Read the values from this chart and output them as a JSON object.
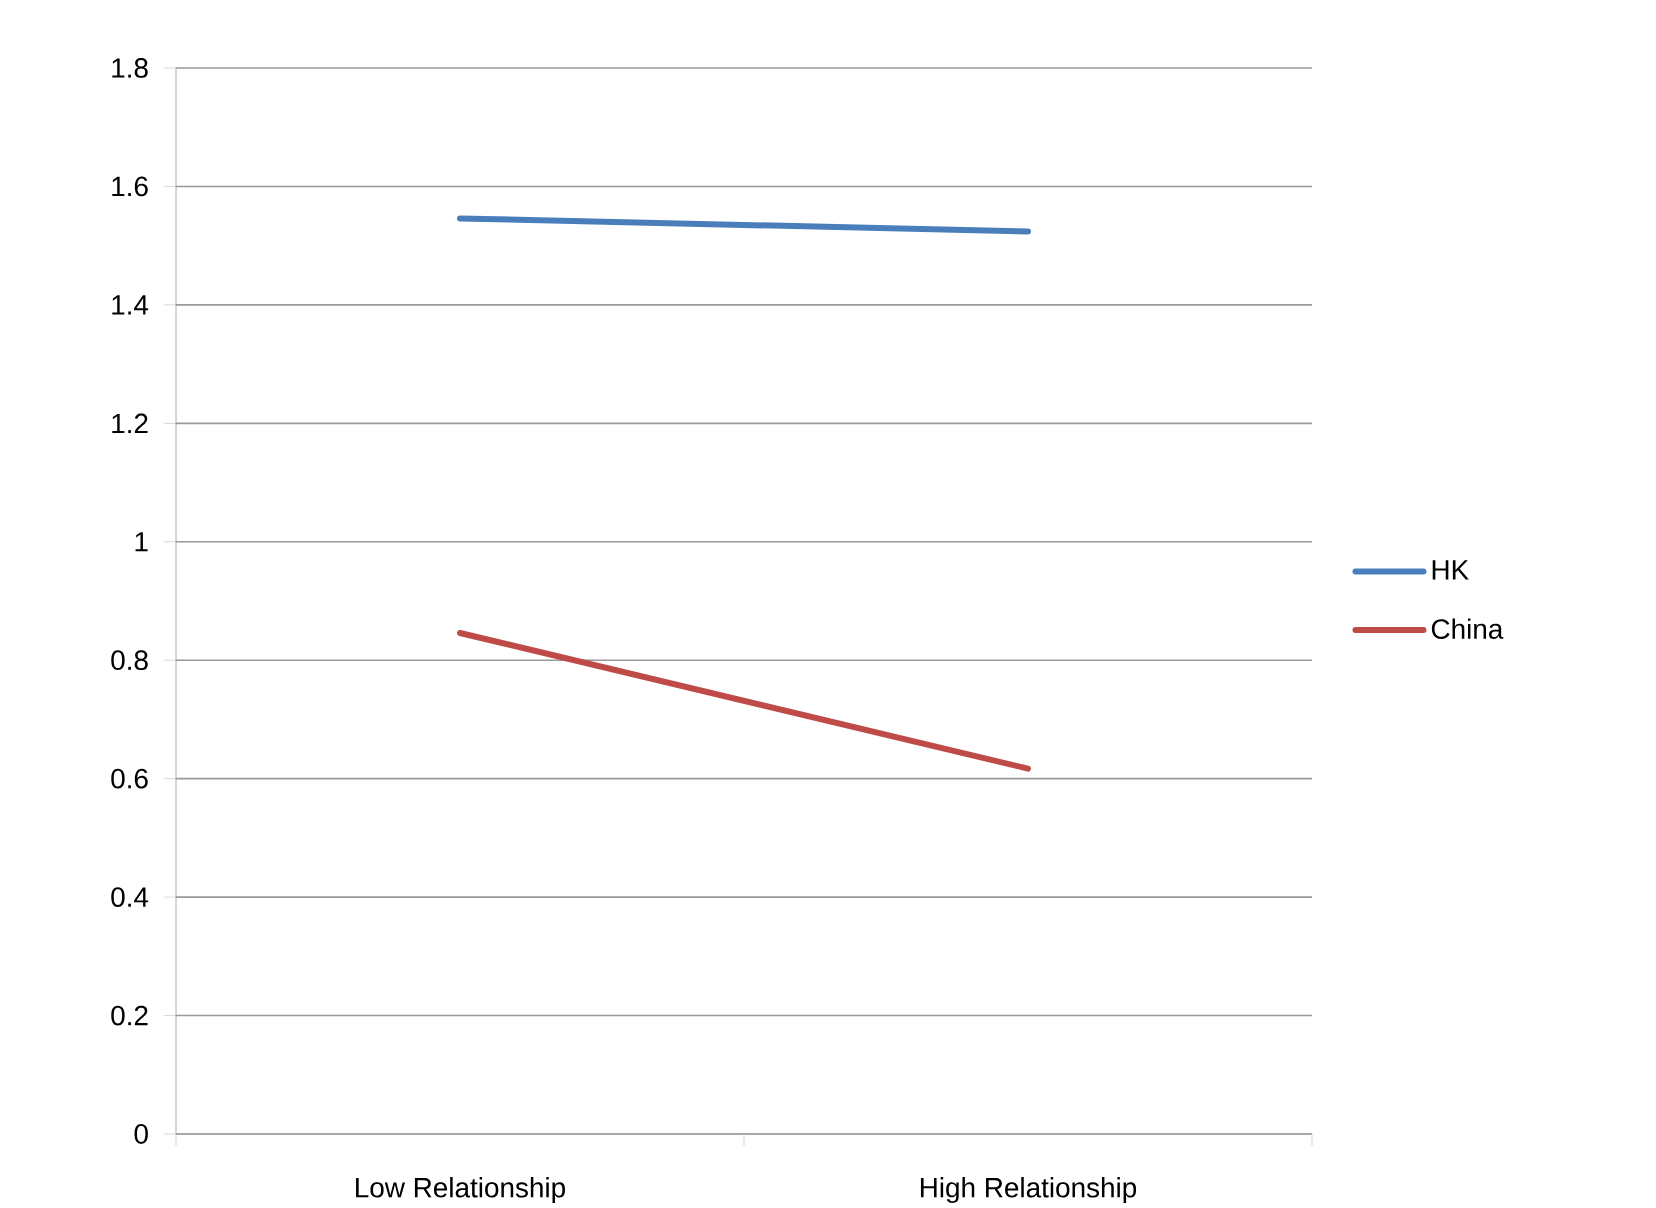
{
  "chart_data": {
    "type": "line",
    "categories": [
      "Low Relationship",
      "High Relationship"
    ],
    "series": [
      {
        "name": "HK",
        "color": "#4a7ebb",
        "values": [
          1.546,
          1.524
        ]
      },
      {
        "name": "China",
        "color": "#be4b48",
        "values": [
          0.846,
          0.617
        ]
      }
    ],
    "ylim": [
      0,
      1.8
    ],
    "yticks": [
      0,
      0.2,
      0.4,
      0.6,
      0.8,
      1,
      1.2,
      1.4,
      1.6,
      1.8
    ],
    "grid": "y",
    "legend": "right",
    "marker": "none",
    "line_style": "solid"
  }
}
